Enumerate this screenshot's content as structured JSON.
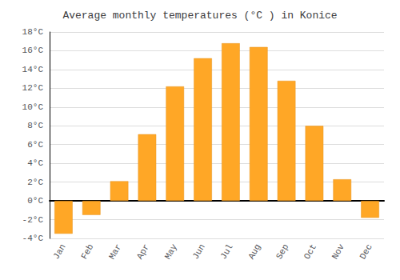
{
  "chart_data": {
    "type": "bar",
    "title": "Average monthly temperatures (°C ) in Konice",
    "categories": [
      "Jan",
      "Feb",
      "Mar",
      "Apr",
      "May",
      "Jun",
      "Jul",
      "Aug",
      "Sep",
      "Oct",
      "Nov",
      "Dec"
    ],
    "values": [
      -3.5,
      -1.5,
      2.1,
      7.1,
      12.2,
      15.2,
      16.8,
      16.4,
      12.8,
      8.0,
      2.3,
      -1.8
    ],
    "color": "#FFA726",
    "ylim": [
      -4,
      18
    ],
    "yticks": [
      {
        "value": -4,
        "label": "-4°C"
      },
      {
        "value": -2,
        "label": "-2°C"
      },
      {
        "value": 0,
        "label": "0°C"
      },
      {
        "value": 2,
        "label": "2°C"
      },
      {
        "value": 4,
        "label": "4°C"
      },
      {
        "value": 6,
        "label": "6°C"
      },
      {
        "value": 8,
        "label": "8°C"
      },
      {
        "value": 10,
        "label": "10°C"
      },
      {
        "value": 12,
        "label": "12°C"
      },
      {
        "value": 14,
        "label": "14°C"
      },
      {
        "value": 16,
        "label": "16°C"
      },
      {
        "value": 18,
        "label": "18°C"
      }
    ],
    "grid": true
  }
}
